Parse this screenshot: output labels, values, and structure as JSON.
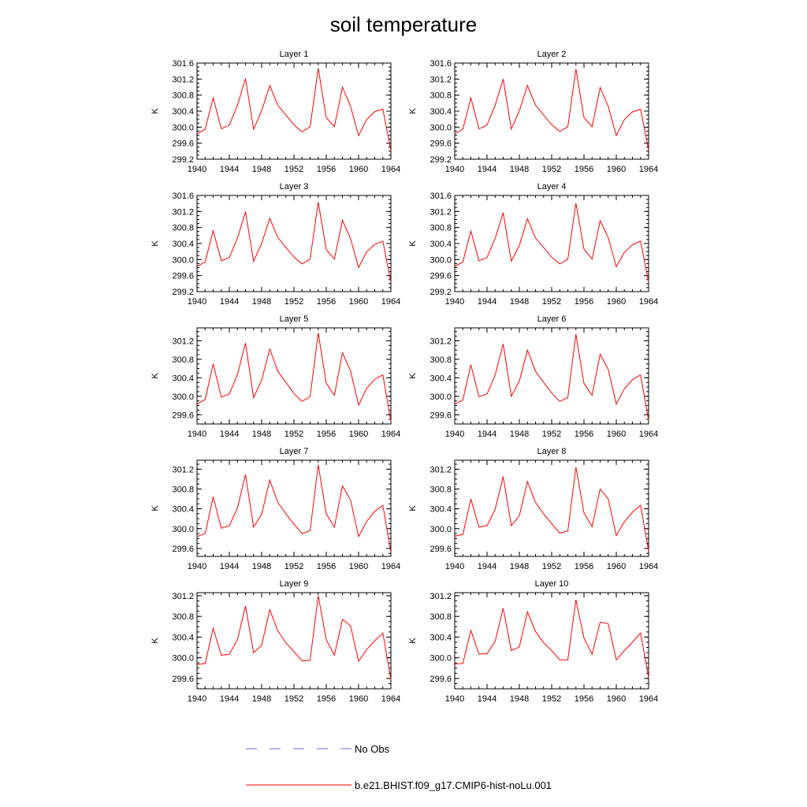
{
  "title": "soil temperature",
  "colors": {
    "model": "#ff0000",
    "obs": "#6a6ad8",
    "axis": "#000000"
  },
  "legend": {
    "obs_label": "No Obs",
    "model_label": "b.e21.BHIST.f09_g17.CMIP6-hist-noLu.001"
  },
  "chart_data": [
    {
      "type": "line",
      "title": "Layer 1",
      "ylabel": "K",
      "xlabel": "",
      "xlim": [
        1940,
        1964
      ],
      "ylim": [
        299.2,
        301.6
      ],
      "xticks": [
        "1940",
        "1944",
        "1948",
        "1952",
        "1956",
        "1960",
        "1964"
      ],
      "yticks": [
        "299.2",
        "299.6",
        "300.0",
        "300.4",
        "300.8",
        "301.2",
        "301.6"
      ],
      "x": [
        1940,
        1941,
        1942,
        1943,
        1944,
        1945,
        1946,
        1947,
        1948,
        1949,
        1950,
        1951,
        1952,
        1953,
        1954,
        1955,
        1956,
        1957,
        1958,
        1959,
        1960,
        1961,
        1962,
        1963,
        1964
      ],
      "series": [
        {
          "name": "b.e21.BHIST.f09_g17.CMIP6-hist-noLu.001",
          "values": [
            299.83,
            299.95,
            300.73,
            299.96,
            300.05,
            300.55,
            301.21,
            299.95,
            300.41,
            301.04,
            300.55,
            300.3,
            300.06,
            299.88,
            300.01,
            301.47,
            300.24,
            300.01,
            301.0,
            300.52,
            299.79,
            300.19,
            300.39,
            300.45,
            299.41
          ]
        }
      ]
    },
    {
      "type": "line",
      "title": "Layer 2",
      "ylabel": "K",
      "xlabel": "",
      "xlim": [
        1940,
        1964
      ],
      "ylim": [
        299.2,
        301.6
      ],
      "xticks": [
        "1940",
        "1944",
        "1948",
        "1952",
        "1956",
        "1960",
        "1964"
      ],
      "yticks": [
        "299.2",
        "299.6",
        "300.0",
        "300.4",
        "300.8",
        "301.2",
        "301.6"
      ],
      "x": [
        1940,
        1941,
        1942,
        1943,
        1944,
        1945,
        1946,
        1947,
        1948,
        1949,
        1950,
        1951,
        1952,
        1953,
        1954,
        1955,
        1956,
        1957,
        1958,
        1959,
        1960,
        1961,
        1962,
        1963,
        1964
      ],
      "series": [
        {
          "name": "b.e21.BHIST.f09_g17.CMIP6-hist-noLu.001",
          "values": [
            299.83,
            299.95,
            300.73,
            299.96,
            300.05,
            300.55,
            301.2,
            299.95,
            300.41,
            301.04,
            300.55,
            300.3,
            300.06,
            299.89,
            300.01,
            301.45,
            300.24,
            300.01,
            300.99,
            300.52,
            299.79,
            300.19,
            300.38,
            300.45,
            299.42
          ]
        }
      ]
    },
    {
      "type": "line",
      "title": "Layer 3",
      "ylabel": "K",
      "xlabel": "",
      "xlim": [
        1940,
        1964
      ],
      "ylim": [
        299.2,
        301.6
      ],
      "xticks": [
        "1940",
        "1944",
        "1948",
        "1952",
        "1956",
        "1960",
        "1964"
      ],
      "yticks": [
        "299.2",
        "299.6",
        "300.0",
        "300.4",
        "300.8",
        "301.2",
        "301.6"
      ],
      "x": [
        1940,
        1941,
        1942,
        1943,
        1944,
        1945,
        1946,
        1947,
        1948,
        1949,
        1950,
        1951,
        1952,
        1953,
        1954,
        1955,
        1956,
        1957,
        1958,
        1959,
        1960,
        1961,
        1962,
        1963,
        1964
      ],
      "series": [
        {
          "name": "b.e21.BHIST.f09_g17.CMIP6-hist-noLu.001",
          "values": [
            299.83,
            299.94,
            300.72,
            299.97,
            300.05,
            300.54,
            301.19,
            299.96,
            300.4,
            301.03,
            300.55,
            300.3,
            300.06,
            299.89,
            300.01,
            301.43,
            300.25,
            300.01,
            300.98,
            300.52,
            299.8,
            300.19,
            300.38,
            300.46,
            299.43
          ]
        }
      ]
    },
    {
      "type": "line",
      "title": "Layer 4",
      "ylabel": "K",
      "xlabel": "",
      "xlim": [
        1940,
        1964
      ],
      "ylim": [
        299.2,
        301.6
      ],
      "xticks": [
        "1940",
        "1944",
        "1948",
        "1952",
        "1956",
        "1960",
        "1964"
      ],
      "yticks": [
        "299.2",
        "299.6",
        "300.0",
        "300.4",
        "300.8",
        "301.2",
        "301.6"
      ],
      "x": [
        1940,
        1941,
        1942,
        1943,
        1944,
        1945,
        1946,
        1947,
        1948,
        1949,
        1950,
        1951,
        1952,
        1953,
        1954,
        1955,
        1956,
        1957,
        1958,
        1959,
        1960,
        1961,
        1962,
        1963,
        1964
      ],
      "series": [
        {
          "name": "b.e21.BHIST.f09_g17.CMIP6-hist-noLu.001",
          "values": [
            299.83,
            299.94,
            300.71,
            299.97,
            300.05,
            300.53,
            301.17,
            299.96,
            300.35,
            301.02,
            300.54,
            300.3,
            300.06,
            299.89,
            300.01,
            301.41,
            300.26,
            300.01,
            300.97,
            300.55,
            299.82,
            300.18,
            300.37,
            300.46,
            299.44
          ]
        }
      ]
    },
    {
      "type": "line",
      "title": "Layer 5",
      "ylabel": "K",
      "xlabel": "",
      "xlim": [
        1940,
        1964
      ],
      "ylim": [
        299.4,
        301.48
      ],
      "xticks": [
        "1940",
        "1944",
        "1948",
        "1952",
        "1956",
        "1960",
        "1964"
      ],
      "yticks": [
        "299.6",
        "300.0",
        "300.4",
        "300.8",
        "301.2"
      ],
      "x": [
        1940,
        1941,
        1942,
        1943,
        1944,
        1945,
        1946,
        1947,
        1948,
        1949,
        1950,
        1951,
        1952,
        1953,
        1954,
        1955,
        1956,
        1957,
        1958,
        1959,
        1960,
        1961,
        1962,
        1963,
        1964
      ],
      "series": [
        {
          "name": "b.e21.BHIST.f09_g17.CMIP6-hist-noLu.001",
          "values": [
            299.83,
            299.93,
            300.7,
            299.98,
            300.05,
            300.47,
            301.15,
            299.97,
            300.35,
            301.02,
            300.54,
            300.3,
            300.06,
            299.89,
            299.99,
            301.37,
            300.28,
            300.02,
            300.94,
            300.55,
            299.81,
            300.17,
            300.37,
            300.46,
            299.46
          ]
        }
      ]
    },
    {
      "type": "line",
      "title": "Layer 6",
      "ylabel": "K",
      "xlabel": "",
      "xlim": [
        1940,
        1964
      ],
      "ylim": [
        299.4,
        301.48
      ],
      "xticks": [
        "1940",
        "1944",
        "1948",
        "1952",
        "1956",
        "1960",
        "1964"
      ],
      "yticks": [
        "299.6",
        "300.0",
        "300.4",
        "300.8",
        "301.2"
      ],
      "x": [
        1940,
        1941,
        1942,
        1943,
        1944,
        1945,
        1946,
        1947,
        1948,
        1949,
        1950,
        1951,
        1952,
        1953,
        1954,
        1955,
        1956,
        1957,
        1958,
        1959,
        1960,
        1961,
        1962,
        1963,
        1964
      ],
      "series": [
        {
          "name": "b.e21.BHIST.f09_g17.CMIP6-hist-noLu.001",
          "values": [
            299.83,
            299.92,
            300.68,
            299.99,
            300.05,
            300.46,
            301.13,
            300.0,
            300.33,
            301.0,
            300.54,
            300.3,
            300.07,
            299.89,
            299.97,
            301.34,
            300.28,
            300.02,
            300.91,
            300.58,
            299.83,
            300.16,
            300.36,
            300.46,
            299.48
          ]
        }
      ]
    },
    {
      "type": "line",
      "title": "Layer 7",
      "ylabel": "K",
      "xlabel": "",
      "xlim": [
        1940,
        1964
      ],
      "ylim": [
        299.44,
        301.38
      ],
      "xticks": [
        "1940",
        "1944",
        "1948",
        "1952",
        "1956",
        "1960",
        "1964"
      ],
      "yticks": [
        "299.6",
        "300.0",
        "300.4",
        "300.8",
        "301.2"
      ],
      "x": [
        1940,
        1941,
        1942,
        1943,
        1944,
        1945,
        1946,
        1947,
        1948,
        1949,
        1950,
        1951,
        1952,
        1953,
        1954,
        1955,
        1956,
        1957,
        1958,
        1959,
        1960,
        1961,
        1962,
        1963,
        1964
      ],
      "series": [
        {
          "name": "b.e21.BHIST.f09_g17.CMIP6-hist-noLu.001",
          "values": [
            299.84,
            299.9,
            300.64,
            300.01,
            300.06,
            300.42,
            301.09,
            300.03,
            300.29,
            300.98,
            300.53,
            300.3,
            300.09,
            299.9,
            299.96,
            301.29,
            300.3,
            300.03,
            300.86,
            300.58,
            299.84,
            300.15,
            300.35,
            300.47,
            299.52
          ]
        }
      ]
    },
    {
      "type": "line",
      "title": "Layer 8",
      "ylabel": "K",
      "xlabel": "",
      "xlim": [
        1940,
        1964
      ],
      "ylim": [
        299.44,
        301.38
      ],
      "xticks": [
        "1940",
        "1944",
        "1948",
        "1952",
        "1956",
        "1960",
        "1964"
      ],
      "yticks": [
        "299.6",
        "300.0",
        "300.4",
        "300.8",
        "301.2"
      ],
      "x": [
        1940,
        1941,
        1942,
        1943,
        1944,
        1945,
        1946,
        1947,
        1948,
        1949,
        1950,
        1951,
        1952,
        1953,
        1954,
        1955,
        1956,
        1957,
        1958,
        1959,
        1960,
        1961,
        1962,
        1963,
        1964
      ],
      "series": [
        {
          "name": "b.e21.BHIST.f09_g17.CMIP6-hist-noLu.001",
          "values": [
            299.85,
            299.88,
            300.6,
            300.03,
            300.06,
            300.39,
            301.05,
            300.06,
            300.26,
            300.95,
            300.53,
            300.3,
            300.1,
            299.91,
            299.95,
            301.24,
            300.32,
            300.04,
            300.8,
            300.6,
            299.86,
            300.14,
            300.33,
            300.47,
            299.55
          ]
        }
      ]
    },
    {
      "type": "line",
      "title": "Layer 9",
      "ylabel": "K",
      "xlabel": "",
      "xlim": [
        1940,
        1964
      ],
      "ylim": [
        299.4,
        301.26
      ],
      "xticks": [
        "1940",
        "1944",
        "1948",
        "1952",
        "1956",
        "1960",
        "1964"
      ],
      "yticks": [
        "299.6",
        "300.0",
        "300.4",
        "300.8",
        "301.2"
      ],
      "x": [
        1940,
        1941,
        1942,
        1943,
        1944,
        1945,
        1946,
        1947,
        1948,
        1949,
        1950,
        1951,
        1952,
        1953,
        1954,
        1955,
        1956,
        1957,
        1958,
        1959,
        1960,
        1961,
        1962,
        1963,
        1964
      ],
      "series": [
        {
          "name": "b.e21.BHIST.f09_g17.CMIP6-hist-noLu.001",
          "values": [
            299.87,
            299.89,
            300.57,
            300.05,
            300.07,
            300.35,
            301.0,
            300.1,
            300.24,
            300.93,
            300.52,
            300.29,
            300.12,
            299.94,
            299.95,
            301.2,
            300.35,
            300.05,
            300.74,
            300.62,
            299.93,
            300.16,
            300.33,
            300.48,
            299.58
          ]
        }
      ]
    },
    {
      "type": "line",
      "title": "Layer 10",
      "ylabel": "K",
      "xlabel": "",
      "xlim": [
        1940,
        1964
      ],
      "ylim": [
        299.4,
        301.26
      ],
      "xticks": [
        "1940",
        "1944",
        "1948",
        "1952",
        "1956",
        "1960",
        "1964"
      ],
      "yticks": [
        "299.6",
        "300.0",
        "300.4",
        "300.8",
        "301.2"
      ],
      "x": [
        1940,
        1941,
        1942,
        1943,
        1944,
        1945,
        1946,
        1947,
        1948,
        1949,
        1950,
        1951,
        1952,
        1953,
        1954,
        1955,
        1956,
        1957,
        1958,
        1959,
        1960,
        1961,
        1962,
        1963,
        1964
      ],
      "series": [
        {
          "name": "b.e21.BHIST.f09_g17.CMIP6-hist-noLu.001",
          "values": [
            299.88,
            299.89,
            300.53,
            300.07,
            300.08,
            300.32,
            300.96,
            300.14,
            300.21,
            300.89,
            300.51,
            300.29,
            300.14,
            299.96,
            299.96,
            301.12,
            300.38,
            300.07,
            300.69,
            300.66,
            299.96,
            300.14,
            300.3,
            300.48,
            299.62
          ]
        }
      ]
    }
  ]
}
